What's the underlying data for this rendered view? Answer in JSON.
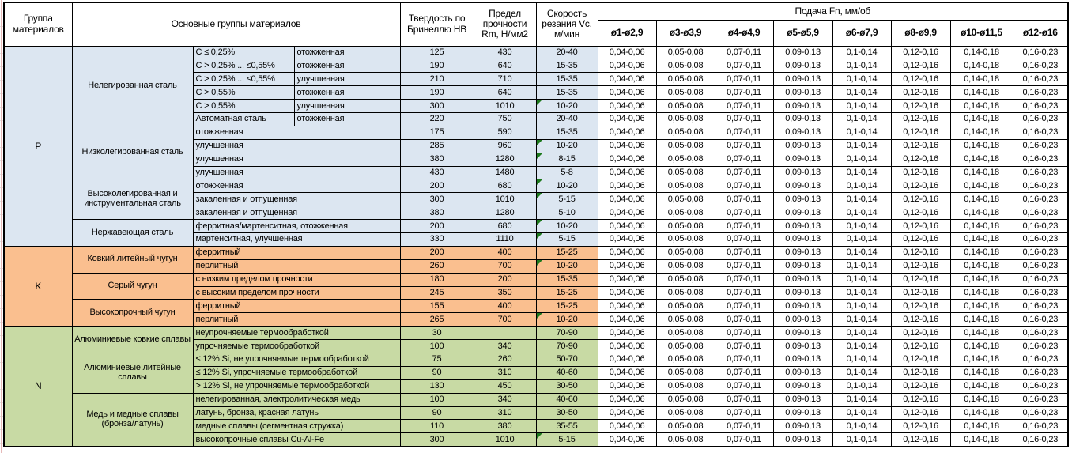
{
  "header": {
    "col_group": "Группа материалов",
    "col_main_groups": "Основные группы материалов",
    "col_hardness": "Твердость по Бринеллю НВ",
    "col_strength": "Предел прочности Rm, Н/мм2",
    "col_speed": "Скорость резания Vc, м/мин",
    "col_feed": "Подача Fn, мм/об",
    "feed_cols": [
      "ø1-ø2,9",
      "ø3-ø3,9",
      "ø4-ø4,9",
      "ø5-ø5,9",
      "ø6-ø7,9",
      "ø8-ø9,9",
      "ø10-ø11,5",
      "ø12-ø16"
    ]
  },
  "feed_values": [
    "0,04-0,06",
    "0,05-0,08",
    "0,07-0,11",
    "0,09-0,13",
    "0,1-0,14",
    "0,12-0,16",
    "0,14-0,18",
    "0,16-0,23"
  ],
  "colors": {
    "section_p": "#DCE6F1",
    "section_k": "#FABF8F",
    "section_n": "#C8DAA4",
    "comment_triangle": "#1E7A1E",
    "border": "#000000"
  },
  "sections": [
    {
      "letter": "P",
      "color_key": "section_p",
      "groups": [
        {
          "name": "Нелегированная сталь",
          "rows": [
            {
              "cells": [
                "C ≤ 0,25%",
                "отожженная"
              ],
              "hb": "125",
              "rm": "430",
              "vc": "20-40",
              "flag": false
            },
            {
              "cells": [
                "C > 0,25% ... ≤0,55%",
                "отожженная"
              ],
              "hb": "190",
              "rm": "640",
              "vc": "15-35",
              "flag": false
            },
            {
              "cells": [
                "C > 0,25% ... ≤0,55%",
                "улучшенная"
              ],
              "hb": "210",
              "rm": "710",
              "vc": "15-35",
              "flag": false
            },
            {
              "cells": [
                "C > 0,55%",
                "отожженная"
              ],
              "hb": "190",
              "rm": "640",
              "vc": "15-35",
              "flag": false
            },
            {
              "cells": [
                "C > 0,55%",
                "улучшенная"
              ],
              "hb": "300",
              "rm": "1010",
              "vc": "10-20",
              "flag": true
            },
            {
              "cells": [
                "Автоматная сталь",
                "отожженная"
              ],
              "hb": "220",
              "rm": "750",
              "vc": "20-40",
              "flag": false
            }
          ]
        },
        {
          "name": "Низколегированная сталь",
          "rows": [
            {
              "cells": [
                "отожженная"
              ],
              "hb": "175",
              "rm": "590",
              "vc": "15-35",
              "flag": false
            },
            {
              "cells": [
                "улучшенная"
              ],
              "hb": "285",
              "rm": "960",
              "vc": "10-20",
              "flag": true
            },
            {
              "cells": [
                "улучшенная"
              ],
              "hb": "380",
              "rm": "1280",
              "vc": "8-15",
              "flag": true
            },
            {
              "cells": [
                "улучшенная"
              ],
              "hb": "430",
              "rm": "1480",
              "vc": "5-8",
              "flag": false
            }
          ]
        },
        {
          "name": "Высоколегированная и инструментальная сталь",
          "rows": [
            {
              "cells": [
                "отожженная"
              ],
              "hb": "200",
              "rm": "680",
              "vc": "10-20",
              "flag": true
            },
            {
              "cells": [
                "закаленная и отпущенная"
              ],
              "hb": "300",
              "rm": "1010",
              "vc": "5-15",
              "flag": true
            },
            {
              "cells": [
                "закаленная и отпущенная"
              ],
              "hb": "380",
              "rm": "1280",
              "vc": "5-10",
              "flag": false
            }
          ]
        },
        {
          "name": "Нержавеющая сталь",
          "rows": [
            {
              "cells": [
                "ферритная/мартенситная, отожженная"
              ],
              "hb": "200",
              "rm": "680",
              "vc": "10-20",
              "flag": true
            },
            {
              "cells": [
                "мартенситная, улучшенная"
              ],
              "hb": "330",
              "rm": "1110",
              "vc": "5-15",
              "flag": true
            }
          ]
        }
      ]
    },
    {
      "letter": "K",
      "color_key": "section_k",
      "groups": [
        {
          "name": "Ковкий литейный чугун",
          "rows": [
            {
              "cells": [
                "ферритный"
              ],
              "hb": "200",
              "rm": "400",
              "vc": "15-25",
              "flag": false
            },
            {
              "cells": [
                "перлитный"
              ],
              "hb": "260",
              "rm": "700",
              "vc": "10-20",
              "flag": true
            }
          ]
        },
        {
          "name": "Серый чугун",
          "rows": [
            {
              "cells": [
                "с низким пределом прочности"
              ],
              "hb": "180",
              "rm": "200",
              "vc": "15-35",
              "flag": false
            },
            {
              "cells": [
                "с высоким пределом прочности"
              ],
              "hb": "245",
              "rm": "350",
              "vc": "15-25",
              "flag": false
            }
          ]
        },
        {
          "name": "Высокопрочный чугун",
          "rows": [
            {
              "cells": [
                "ферритный"
              ],
              "hb": "155",
              "rm": "400",
              "vc": "15-25",
              "flag": false
            },
            {
              "cells": [
                "перлитный"
              ],
              "hb": "265",
              "rm": "700",
              "vc": "10-20",
              "flag": true
            }
          ]
        }
      ]
    },
    {
      "letter": "N",
      "color_key": "section_n",
      "groups": [
        {
          "name": "Алюминиевые ковкие сплавы",
          "rows": [
            {
              "cells": [
                "неупрочняемые термообработкой"
              ],
              "hb": "30",
              "rm": "",
              "vc": "70-90",
              "flag": false
            },
            {
              "cells": [
                "упрочняемые термообработкой"
              ],
              "hb": "100",
              "rm": "340",
              "vc": "70-90",
              "flag": false
            }
          ]
        },
        {
          "name": "Алюминиевые литейные сплавы",
          "rows": [
            {
              "cells": [
                "≤ 12% Si, не упрочняемые термообработкой"
              ],
              "hb": "75",
              "rm": "260",
              "vc": "50-70",
              "flag": false
            },
            {
              "cells": [
                "≤ 12% Si, упрочняемые термообработкой"
              ],
              "hb": "90",
              "rm": "310",
              "vc": "40-60",
              "flag": false
            },
            {
              "cells": [
                "> 12% Si, не упрочняемые термообработкой"
              ],
              "hb": "130",
              "rm": "450",
              "vc": "30-50",
              "flag": false
            }
          ]
        },
        {
          "name": "Медь и медные сплавы (бронза/латунь)",
          "rows": [
            {
              "cells": [
                "нелегированная, электролитическая медь"
              ],
              "hb": "100",
              "rm": "340",
              "vc": "40-60",
              "flag": false
            },
            {
              "cells": [
                "латунь, бронза, красная латунь"
              ],
              "hb": "90",
              "rm": "310",
              "vc": "30-50",
              "flag": false
            },
            {
              "cells": [
                "медные сплавы (сегментная стружка)"
              ],
              "hb": "110",
              "rm": "380",
              "vc": "35-55",
              "flag": false
            },
            {
              "cells": [
                "высокопрочные сплавы Cu-Al-Fe"
              ],
              "hb": "300",
              "rm": "1010",
              "vc": "5-15",
              "flag": true
            }
          ]
        }
      ]
    }
  ]
}
